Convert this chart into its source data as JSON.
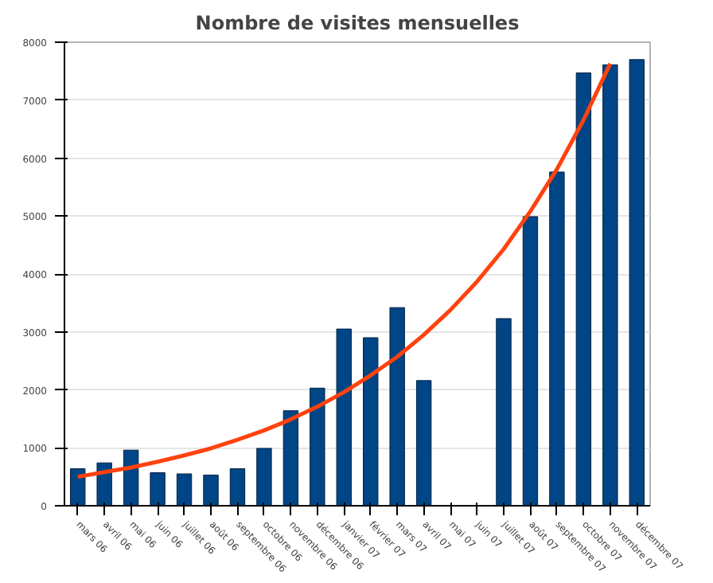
{
  "chart_data": {
    "type": "bar",
    "title": "Nombre de visites mensuelles",
    "categories": [
      "mars 06",
      "avril 06",
      "mai 06",
      "juin 06",
      "juillet 06",
      "août 06",
      "septembre 06",
      "octobre 06",
      "novembre 06",
      "décembre 06",
      "janvier 07",
      "février 07",
      "mars 07",
      "avril 07",
      "mai 07",
      "juin 07",
      "juillet 07",
      "août 07",
      "septembre 07",
      "octobre 07",
      "novembre 07",
      "décembre 07"
    ],
    "series": [
      {
        "color": "#004586",
        "values": [
          640,
          740,
          960,
          570,
          550,
          530,
          640,
          990,
          1640,
          2030,
          3050,
          2900,
          3420,
          2160,
          null,
          null,
          3230,
          4990,
          5760,
          7470,
          7610,
          7700
        ]
      },
      {
        "type": "line",
        "color": "#ff420e",
        "values": [
          500,
          580,
          660,
          760,
          870,
          990,
          1140,
          1300,
          1490,
          1710,
          1960,
          2250,
          2570,
          2950,
          3380,
          3870,
          4430,
          5080,
          5810,
          6660,
          7630,
          null
        ]
      }
    ],
    "ylim": [
      0,
      8000
    ],
    "yticks": [
      0,
      1000,
      2000,
      3000,
      4000,
      5000,
      6000,
      7000,
      8000
    ],
    "grid": "y"
  }
}
